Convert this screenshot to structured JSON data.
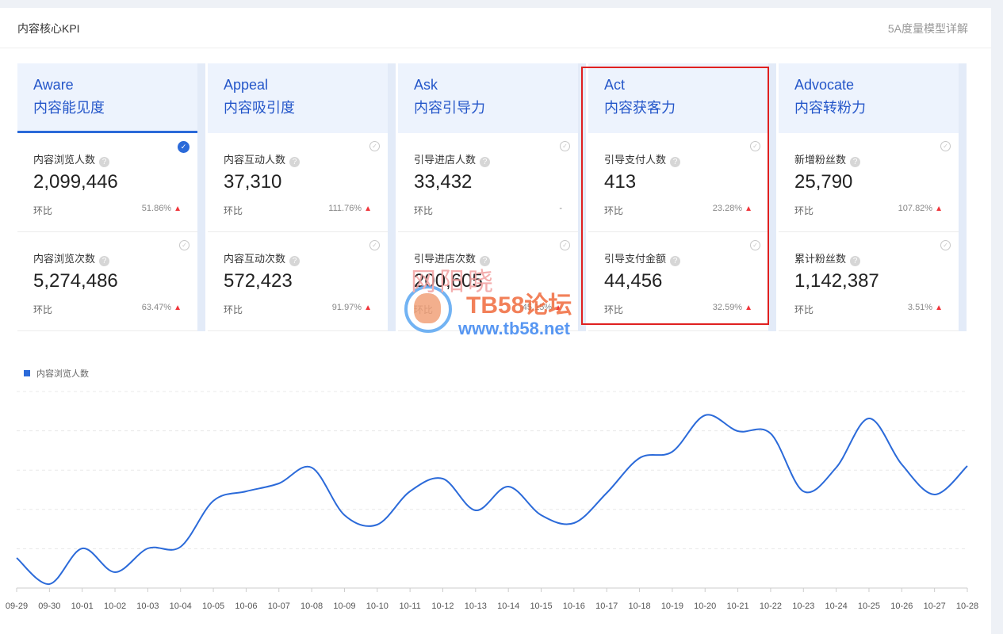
{
  "header": {
    "title": "内容核心KPI",
    "link": "5A度量模型详解"
  },
  "stages": [
    {
      "en": "Aware",
      "cn": "内容能见度",
      "cards": [
        {
          "label": "内容浏览人数",
          "value": "2,099,446",
          "compare": "环比",
          "pct": "51.86%",
          "up": true,
          "checked": true
        },
        {
          "label": "内容浏览次数",
          "value": "5,274,486",
          "compare": "环比",
          "pct": "63.47%",
          "up": true,
          "checked": false
        }
      ]
    },
    {
      "en": "Appeal",
      "cn": "内容吸引度",
      "cards": [
        {
          "label": "内容互动人数",
          "value": "37,310",
          "compare": "环比",
          "pct": "111.76%",
          "up": true,
          "checked": false
        },
        {
          "label": "内容互动次数",
          "value": "572,423",
          "compare": "环比",
          "pct": "91.97%",
          "up": true,
          "checked": false
        }
      ]
    },
    {
      "en": "Ask",
      "cn": "内容引导力",
      "cards": [
        {
          "label": "引导进店人数",
          "value": "33,432",
          "compare": "环比",
          "pct": "-",
          "up": false,
          "checked": false
        },
        {
          "label": "引导进店次数",
          "value": "200,605",
          "compare": "环比",
          "pct": "45.15%",
          "up": true,
          "checked": false
        }
      ]
    },
    {
      "en": "Act",
      "cn": "内容获客力",
      "cards": [
        {
          "label": "引导支付人数",
          "value": "413",
          "compare": "环比",
          "pct": "23.28%",
          "up": true,
          "checked": false
        },
        {
          "label": "引导支付金额",
          "value": "44,456",
          "compare": "环比",
          "pct": "32.59%",
          "up": true,
          "checked": false
        }
      ]
    },
    {
      "en": "Advocate",
      "cn": "内容转粉力",
      "cards": [
        {
          "label": "新增粉丝数",
          "value": "25,790",
          "compare": "环比",
          "pct": "107.82%",
          "up": true,
          "checked": false
        },
        {
          "label": "累计粉丝数",
          "value": "1,142,387",
          "compare": "环比",
          "pct": "3.51%",
          "up": true,
          "checked": false
        }
      ]
    }
  ],
  "watermark": {
    "line1": "网阳晓",
    "line2": "TB58论坛",
    "line3": "www.tb58.net"
  },
  "chart_data": {
    "type": "line",
    "series": [
      {
        "name": "内容浏览人数",
        "values": [
          0.38,
          0.05,
          0.5,
          0.2,
          0.5,
          0.52,
          1.1,
          1.22,
          1.32,
          1.52,
          0.92,
          0.8,
          1.22,
          1.38,
          0.98,
          1.28,
          0.92,
          0.82,
          1.2,
          1.64,
          1.72,
          2.18,
          1.98,
          1.95,
          1.22,
          1.52,
          2.14,
          1.56,
          1.18,
          1.54
        ]
      }
    ],
    "categories": [
      "09-29",
      "09-30",
      "10-01",
      "10-02",
      "10-03",
      "10-04",
      "10-05",
      "10-06",
      "10-07",
      "10-08",
      "10-09",
      "10-10",
      "10-11",
      "10-12",
      "10-13",
      "10-14",
      "10-15",
      "10-16",
      "10-17",
      "10-18",
      "10-19",
      "10-20",
      "10-21",
      "10-22",
      "10-23",
      "10-24",
      "10-25",
      "10-26",
      "10-27",
      "10-28"
    ],
    "ylim": [
      0,
      2.5
    ],
    "grid": true,
    "legend": "top-left",
    "color": "#2b6ad9"
  }
}
